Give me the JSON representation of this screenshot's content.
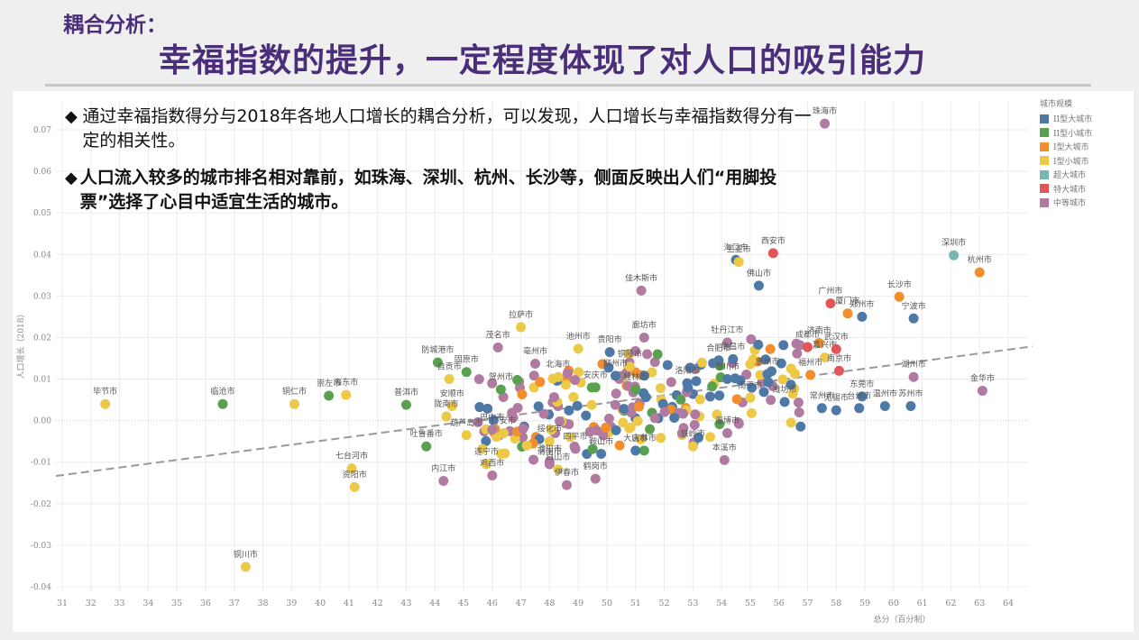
{
  "header": {
    "subtitle": "耦合分析：",
    "title": "幸福指数的提升，一定程度体现了对人口的吸引能力"
  },
  "bullets": [
    {
      "marker": "◆",
      "text": "通过幸福指数得分与2018年各地人口增长的耦合分析，可以发现，人口增长与幸福指数得分有一定的相关性。",
      "bold": false
    },
    {
      "marker": "◆",
      "text": "人口流入较多的城市排名相对靠前，如珠海、深圳、杭州、长沙等，侧面反映出人们“用脚投票”选择了心目中适宜生活的城市。",
      "bold": true
    }
  ],
  "legend": {
    "title": "城市规模",
    "items": [
      {
        "label": "II型大城市",
        "color": "#4e79a7"
      },
      {
        "label": "II型小城市",
        "color": "#59a14f"
      },
      {
        "label": "I型大城市",
        "color": "#f28e2b"
      },
      {
        "label": "I型小城市",
        "color": "#edc948"
      },
      {
        "label": "超大城市",
        "color": "#76b7b2"
      },
      {
        "label": "特大城市",
        "color": "#e15759"
      },
      {
        "label": "中等城市",
        "color": "#b07aa1"
      }
    ]
  },
  "chart_data": {
    "type": "scatter",
    "title": "",
    "xlabel": "总分（百分制）",
    "ylabel": "人口增长（2018）",
    "xlim": [
      31,
      64
    ],
    "ylim": [
      -0.04,
      0.07
    ],
    "xticks": [
      "31",
      "32",
      "33",
      "34",
      "35",
      "36",
      "37",
      "38",
      "39",
      "40",
      "41",
      "42",
      "43",
      "44",
      "45",
      "46",
      "47",
      "48",
      "49",
      "50",
      "51",
      "52",
      "53",
      "54",
      "55",
      "56",
      "57",
      "58",
      "59",
      "60",
      "61",
      "62",
      "63",
      "64"
    ],
    "yticks": [
      "0.07",
      "0.06",
      "0.05",
      "0.04",
      "0.03",
      "0.02",
      "0.01",
      "0.00",
      "-0.01",
      "-0.02",
      "-0.03",
      "-0.04"
    ],
    "grid": true,
    "legend_position": "right",
    "trendline": {
      "style": "dashed",
      "from": [
        31,
        -0.0131
      ],
      "to": [
        64,
        0.017
      ]
    },
    "labeled_points": [
      {
        "name": "珠海市",
        "x": 57.6,
        "y": 0.0715,
        "cat": "中等城市"
      },
      {
        "name": "深圳市",
        "x": 62.1,
        "y": 0.0398,
        "cat": "超大城市"
      },
      {
        "name": "杭州市",
        "x": 63.0,
        "y": 0.0357,
        "cat": "I型大城市"
      },
      {
        "name": "西安市",
        "x": 55.8,
        "y": 0.0403,
        "cat": "特大城市"
      },
      {
        "name": "海口市",
        "x": 54.5,
        "y": 0.0387,
        "cat": "II型大城市"
      },
      {
        "name": "三亚市",
        "x": 54.6,
        "y": 0.0382,
        "cat": "I型小城市"
      },
      {
        "name": "佛山市",
        "x": 55.3,
        "y": 0.0325,
        "cat": "II型大城市"
      },
      {
        "name": "长沙市",
        "x": 60.2,
        "y": 0.0298,
        "cat": "I型大城市"
      },
      {
        "name": "宁波市",
        "x": 60.7,
        "y": 0.0246,
        "cat": "II型大城市"
      },
      {
        "name": "广州市",
        "x": 57.8,
        "y": 0.0282,
        "cat": "特大城市"
      },
      {
        "name": "厦门市",
        "x": 58.4,
        "y": 0.0258,
        "cat": "I型大城市"
      },
      {
        "name": "郑州市",
        "x": 58.9,
        "y": 0.025,
        "cat": "II型大城市"
      },
      {
        "name": "佳木斯市",
        "x": 51.2,
        "y": 0.0313,
        "cat": "中等城市"
      },
      {
        "name": "拉萨市",
        "x": 47.0,
        "y": 0.0225,
        "cat": "I型小城市"
      },
      {
        "name": "茂名市",
        "x": 46.2,
        "y": 0.0176,
        "cat": "中等城市"
      },
      {
        "name": "廊坊市",
        "x": 51.3,
        "y": 0.02,
        "cat": "中等城市"
      },
      {
        "name": "牡丹江市",
        "x": 54.2,
        "y": 0.0188,
        "cat": "中等城市"
      },
      {
        "name": "济南市",
        "x": 57.4,
        "y": 0.0187,
        "cat": "I型大城市"
      },
      {
        "name": "成都市",
        "x": 57.0,
        "y": 0.0177,
        "cat": "特大城市"
      },
      {
        "name": "嘉兴市",
        "x": 57.6,
        "y": 0.0152,
        "cat": "I型小城市"
      },
      {
        "name": "武汉市",
        "x": 58.0,
        "y": 0.0172,
        "cat": "特大城市"
      },
      {
        "name": "池州市",
        "x": 49.0,
        "y": 0.0173,
        "cat": "I型小城市"
      },
      {
        "name": "贵阳市",
        "x": 50.1,
        "y": 0.0165,
        "cat": "II型大城市"
      },
      {
        "name": "亳州市",
        "x": 47.5,
        "y": 0.0137,
        "cat": "中等城市"
      },
      {
        "name": "防城港市",
        "x": 44.1,
        "y": 0.014,
        "cat": "II型小城市"
      },
      {
        "name": "固原市",
        "x": 45.1,
        "y": 0.0117,
        "cat": "II型小城市"
      },
      {
        "name": "铜陵市",
        "x": 50.8,
        "y": 0.013,
        "cat": "I型小城市"
      },
      {
        "name": "合肥市",
        "x": 53.9,
        "y": 0.0145,
        "cat": "II型大城市"
      },
      {
        "name": "北海市",
        "x": 48.3,
        "y": 0.0105,
        "cat": "I型小城市"
      },
      {
        "name": "柳州市",
        "x": 50.3,
        "y": 0.0108,
        "cat": "II型大城市"
      },
      {
        "name": "洛阳市",
        "x": 52.8,
        "y": 0.009,
        "cat": "II型大城市"
      },
      {
        "name": "南昌市",
        "x": 54.4,
        "y": 0.0148,
        "cat": "II型大城市"
      },
      {
        "name": "银川市",
        "x": 54.2,
        "y": 0.01,
        "cat": "II型大城市"
      },
      {
        "name": "惠州市",
        "x": 55.6,
        "y": 0.0112,
        "cat": "II型大城市"
      },
      {
        "name": "福州市",
        "x": 57.1,
        "y": 0.011,
        "cat": "I型大城市"
      },
      {
        "name": "南京市",
        "x": 58.1,
        "y": 0.012,
        "cat": "特大城市"
      },
      {
        "name": "湖州市",
        "x": 60.7,
        "y": 0.0105,
        "cat": "中等城市"
      },
      {
        "name": "金华市",
        "x": 63.1,
        "y": 0.0072,
        "cat": "中等城市"
      },
      {
        "name": "东莞市",
        "x": 58.9,
        "y": 0.0058,
        "cat": "II型大城市"
      },
      {
        "name": "苏州市",
        "x": 60.6,
        "y": 0.0035,
        "cat": "II型大城市"
      },
      {
        "name": "常州市",
        "x": 57.5,
        "y": 0.003,
        "cat": "II型大城市"
      },
      {
        "name": "无锡市",
        "x": 58.0,
        "y": 0.0025,
        "cat": "II型大城市"
      },
      {
        "name": "台州市",
        "x": 58.8,
        "y": 0.003,
        "cat": "II型大城市"
      },
      {
        "name": "温州市",
        "x": 59.7,
        "y": 0.0035,
        "cat": "II型大城市"
      },
      {
        "name": "潍坊市",
        "x": 56.2,
        "y": 0.0045,
        "cat": "II型大城市"
      },
      {
        "name": "南平市",
        "x": 55.0,
        "y": 0.0055,
        "cat": "I型小城市"
      },
      {
        "name": "淄博市",
        "x": 54.2,
        "y": -0.003,
        "cat": "中等城市"
      },
      {
        "name": "本溪市",
        "x": 54.1,
        "y": -0.0095,
        "cat": "中等城市"
      },
      {
        "name": "铁岭市",
        "x": 53.0,
        "y": -0.0062,
        "cat": "I型小城市"
      },
      {
        "name": "吉林市",
        "x": 51.3,
        "y": -0.0072,
        "cat": "II型小城市"
      },
      {
        "name": "大庆市",
        "x": 51.0,
        "y": -0.0072,
        "cat": "II型大城市"
      },
      {
        "name": "桂林市",
        "x": 51.0,
        "y": 0.0075,
        "cat": "II型小城市"
      },
      {
        "name": "安庆市",
        "x": 49.6,
        "y": 0.008,
        "cat": "II型小城市"
      },
      {
        "name": "贺州市",
        "x": 46.3,
        "y": 0.0075,
        "cat": "II型小城市"
      },
      {
        "name": "自贡市",
        "x": 44.5,
        "y": 0.01,
        "cat": "I型小城市"
      },
      {
        "name": "普洱市",
        "x": 43.0,
        "y": 0.0038,
        "cat": "II型小城市"
      },
      {
        "name": "安顺市",
        "x": 44.6,
        "y": 0.0035,
        "cat": "I型小城市"
      },
      {
        "name": "陇南市",
        "x": 44.4,
        "y": 0.001,
        "cat": "I型小城市"
      },
      {
        "name": "巴中市",
        "x": 46.0,
        "y": -0.0022,
        "cat": "中等城市"
      },
      {
        "name": "吐鲁番市",
        "x": 43.7,
        "y": -0.0062,
        "cat": "II型小城市"
      },
      {
        "name": "葫芦岛市",
        "x": 45.1,
        "y": -0.0035,
        "cat": "I型小城市"
      },
      {
        "name": "广安市",
        "x": 46.4,
        "y": -0.003,
        "cat": "I型小城市"
      },
      {
        "name": "绥化市",
        "x": 48.0,
        "y": -0.005,
        "cat": "I型小城市"
      },
      {
        "name": "四平市",
        "x": 48.9,
        "y": -0.0068,
        "cat": "中等城市"
      },
      {
        "name": "鞍山市",
        "x": 49.8,
        "y": -0.008,
        "cat": "II型大城市"
      },
      {
        "name": "濮阳市",
        "x": 48.0,
        "y": -0.0098,
        "cat": "中等城市"
      },
      {
        "name": "遂宁市",
        "x": 45.8,
        "y": -0.0105,
        "cat": "I型小城市"
      },
      {
        "name": "内江市",
        "x": 44.3,
        "y": -0.0145,
        "cat": "中等城市"
      },
      {
        "name": "鸡西市",
        "x": 46.0,
        "y": -0.0132,
        "cat": "中等城市"
      },
      {
        "name": "渭南市",
        "x": 48.0,
        "y": -0.0105,
        "cat": "中等城市"
      },
      {
        "name": "白山市",
        "x": 48.3,
        "y": -0.0118,
        "cat": "I型小城市"
      },
      {
        "name": "伊春市",
        "x": 48.6,
        "y": -0.0155,
        "cat": "中等城市"
      },
      {
        "name": "鹤岗市",
        "x": 49.6,
        "y": -0.014,
        "cat": "中等城市"
      },
      {
        "name": "毕节市",
        "x": 32.5,
        "y": 0.004,
        "cat": "I型小城市"
      },
      {
        "name": "临沧市",
        "x": 36.6,
        "y": 0.004,
        "cat": "II型小城市"
      },
      {
        "name": "铜仁市",
        "x": 39.1,
        "y": 0.004,
        "cat": "I型小城市"
      },
      {
        "name": "崇左市",
        "x": 40.3,
        "y": 0.006,
        "cat": "II型小城市"
      },
      {
        "name": "海东市",
        "x": 40.9,
        "y": 0.0062,
        "cat": "I型小城市"
      },
      {
        "name": "七台河市",
        "x": 41.1,
        "y": -0.0115,
        "cat": "I型小城市"
      },
      {
        "name": "资阳市",
        "x": 41.2,
        "y": -0.016,
        "cat": "I型小城市"
      },
      {
        "name": "铜川市",
        "x": 37.4,
        "y": -0.0352,
        "cat": "I型小城市"
      }
    ],
    "cluster_note": "Plus ~200 unlabeled points densely clustered between x=45–57, y=-0.01–0.015 across all categories"
  }
}
